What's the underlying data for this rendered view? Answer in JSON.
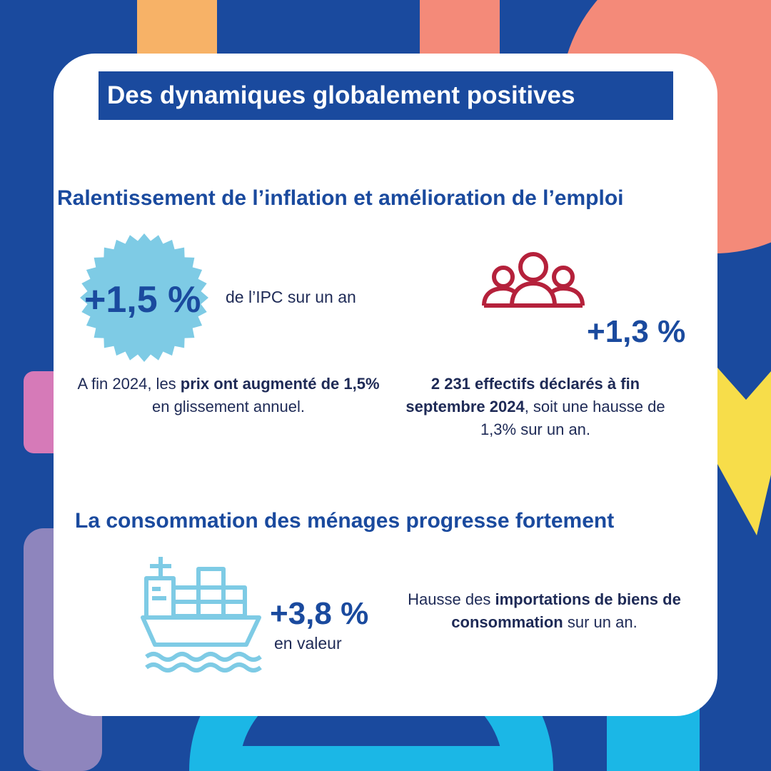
{
  "title": "Des dynamiques globalement positives",
  "section1": {
    "heading": "Ralentissement de l’inflation et amélioration de l’emploi",
    "inflation": {
      "value": "+1,5 %",
      "label": "de l’IPC sur un an",
      "desc_1": "A fin 2024, les ",
      "desc_2": "prix ont augmenté de 1,5%",
      "desc_3": " en glissement annuel."
    },
    "employment": {
      "value": "+1,3 %",
      "desc_1": "2 231 effectifs déclarés à fin septembre 2024",
      "desc_2": ", soit une hausse de 1,3% sur un an."
    }
  },
  "section2": {
    "heading": "La consommation des ménages progresse fortement",
    "value": "+3,8 %",
    "unit": "en valeur",
    "desc_1": "Hausse des ",
    "desc_2": "importations de biens de consommation",
    "desc_3": " sur un an."
  },
  "colors": {
    "background": "#1a4a9e",
    "accent_blue": "#1a4a9e",
    "badge": "#7ecbe5",
    "people_icon": "#b5213b",
    "ship_icon": "#7ecbe5"
  },
  "icons": [
    "starburst-badge-icon",
    "people-group-icon",
    "cargo-ship-icon"
  ]
}
